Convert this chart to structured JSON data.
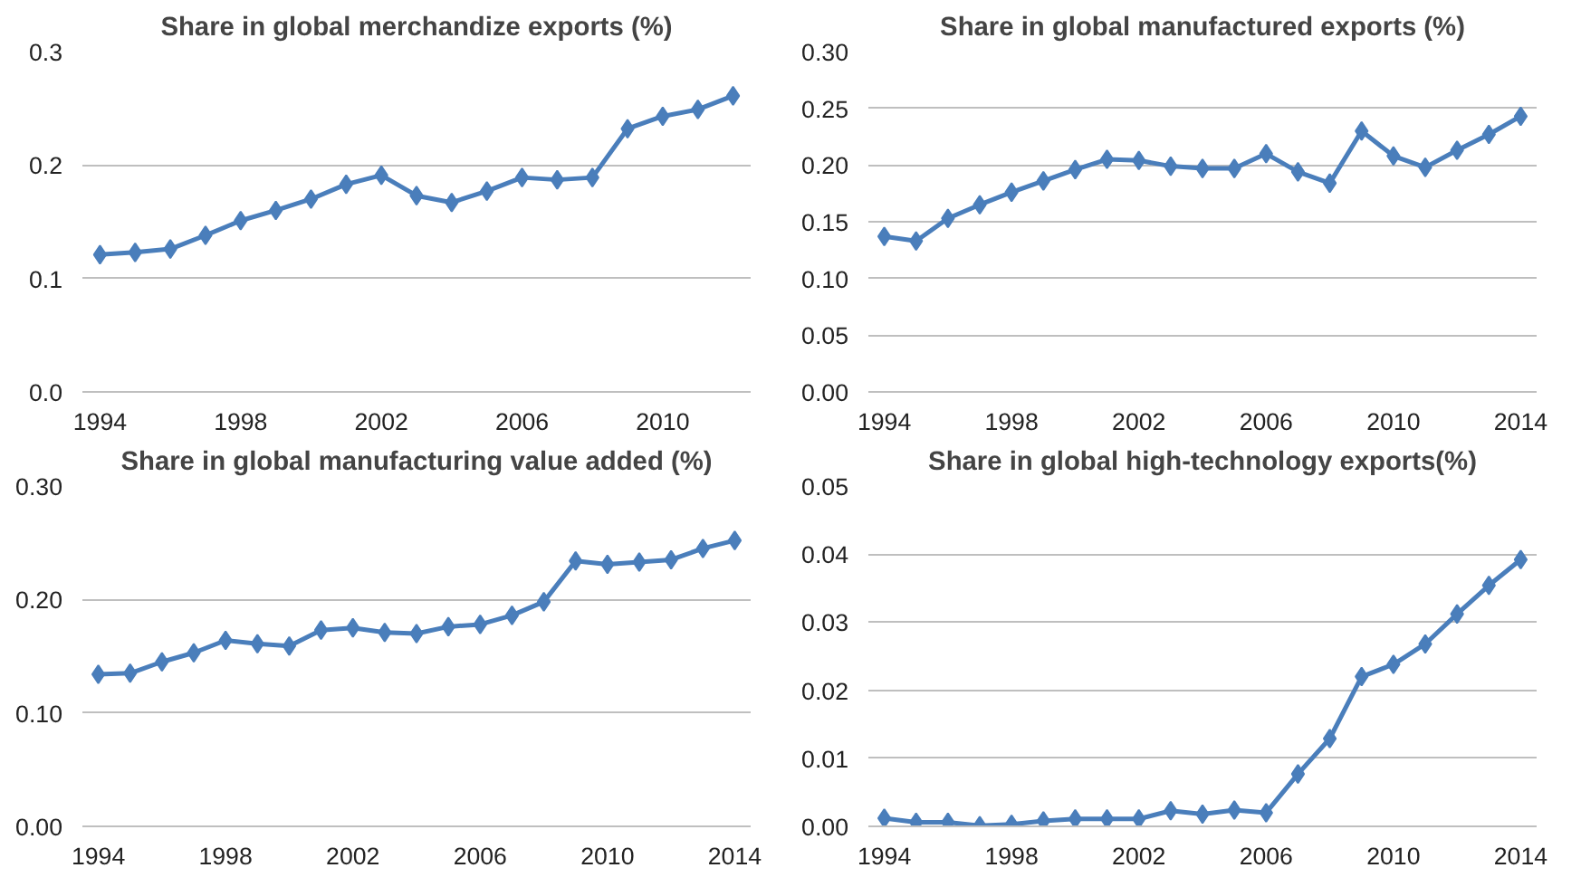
{
  "chart_data": [
    {
      "type": "line",
      "title": "Share in global merchandize exports (%)",
      "x": [
        1994,
        1995,
        1996,
        1997,
        1998,
        1999,
        2000,
        2001,
        2002,
        2003,
        2004,
        2005,
        2006,
        2007,
        2008,
        2009,
        2010,
        2011,
        2012
      ],
      "series": [
        {
          "color": "#4a7ebb",
          "values": [
            0.121,
            0.123,
            0.126,
            0.138,
            0.151,
            0.16,
            0.17,
            0.183,
            0.191,
            0.173,
            0.167,
            0.177,
            0.189,
            0.187,
            0.189,
            0.232,
            0.243,
            0.249,
            0.261
          ]
        }
      ],
      "xlim": [
        1993.5,
        2012.5
      ],
      "xticks": [
        1994,
        1998,
        2002,
        2006,
        2010
      ],
      "ylim": [
        0,
        0.3
      ],
      "yticks": [
        {
          "value": 0,
          "label": "0.0"
        },
        0.1,
        0.2,
        0.3
      ],
      "grid": "y",
      "marker": "diamond",
      "line_style": "solid"
    },
    {
      "type": "line",
      "title": "Share in global manufactured exports (%)",
      "x": [
        1994,
        1995,
        1996,
        1997,
        1998,
        1999,
        2000,
        2001,
        2002,
        2003,
        2004,
        2005,
        2006,
        2007,
        2008,
        2009,
        2010,
        2011,
        2012,
        2013,
        2014
      ],
      "series": [
        {
          "color": "#4a7ebb",
          "values": [
            0.137,
            0.133,
            0.153,
            0.165,
            0.176,
            0.186,
            0.196,
            0.205,
            0.204,
            0.199,
            0.197,
            0.197,
            0.21,
            0.194,
            0.184,
            0.23,
            0.208,
            0.198,
            0.213,
            0.227,
            0.243
          ]
        }
      ],
      "xlim": [
        1993.5,
        2014.5
      ],
      "xticks": [
        1994,
        1998,
        2002,
        2006,
        2010,
        2014
      ],
      "ylim": [
        0,
        0.3
      ],
      "yticks": [
        {
          "value": 0,
          "label": "0.00"
        },
        {
          "value": 0.05,
          "label": "0.05"
        },
        {
          "value": 0.1,
          "label": "0.10"
        },
        {
          "value": 0.15,
          "label": "0.15"
        },
        {
          "value": 0.2,
          "label": "0.20"
        },
        {
          "value": 0.25,
          "label": "0.25"
        },
        {
          "value": 0.3,
          "label": "0.30"
        }
      ],
      "grid": "y",
      "marker": "diamond",
      "line_style": "solid"
    },
    {
      "type": "line",
      "title": "Share in global manufacturing value added (%)",
      "x": [
        1994,
        1995,
        1996,
        1997,
        1998,
        1999,
        2000,
        2001,
        2002,
        2003,
        2004,
        2005,
        2006,
        2007,
        2008,
        2009,
        2010,
        2011,
        2012,
        2013,
        2014
      ],
      "series": [
        {
          "color": "#4a7ebb",
          "values": [
            0.134,
            0.135,
            0.145,
            0.153,
            0.164,
            0.161,
            0.159,
            0.173,
            0.175,
            0.171,
            0.17,
            0.176,
            0.178,
            0.186,
            0.198,
            0.234,
            0.231,
            0.233,
            0.235,
            0.245,
            0.252
          ]
        }
      ],
      "xlim": [
        1993.5,
        2014.5
      ],
      "xticks": [
        1994,
        1998,
        2002,
        2006,
        2010,
        2014
      ],
      "ylim": [
        0,
        0.3
      ],
      "yticks": [
        {
          "value": 0,
          "label": "0.00"
        },
        {
          "value": 0.1,
          "label": "0.10"
        },
        {
          "value": 0.2,
          "label": "0.20"
        },
        {
          "value": 0.3,
          "label": "0.30"
        }
      ],
      "grid": "y",
      "marker": "diamond",
      "line_style": "solid"
    },
    {
      "type": "line",
      "title": "Share in global high-technology exports(%)",
      "x": [
        1994,
        1995,
        1996,
        1997,
        1998,
        1999,
        2000,
        2001,
        2002,
        2003,
        2004,
        2005,
        2006,
        2007,
        2008,
        2009,
        2010,
        2011,
        2012,
        2013,
        2014
      ],
      "series": [
        {
          "color": "#4a7ebb",
          "values": [
            0.0012,
            0.0006,
            0.0006,
            0.0001,
            0.0003,
            0.0008,
            0.0011,
            0.0011,
            0.0011,
            0.0023,
            0.0018,
            0.0024,
            0.002,
            0.0077,
            0.0129,
            0.022,
            0.0238,
            0.0268,
            0.0312,
            0.0354,
            0.0392
          ]
        }
      ],
      "xlim": [
        1993.5,
        2014.5
      ],
      "xticks": [
        1994,
        1998,
        2002,
        2006,
        2010,
        2014
      ],
      "ylim": [
        0,
        0.05
      ],
      "yticks": [
        {
          "value": 0,
          "label": "0.00"
        },
        {
          "value": 0.01,
          "label": "0.01"
        },
        {
          "value": 0.02,
          "label": "0.02"
        },
        {
          "value": 0.03,
          "label": "0.03"
        },
        {
          "value": 0.04,
          "label": "0.04"
        },
        {
          "value": 0.05,
          "label": "0.05"
        }
      ],
      "grid": "y",
      "marker": "diamond",
      "line_style": "solid"
    }
  ]
}
